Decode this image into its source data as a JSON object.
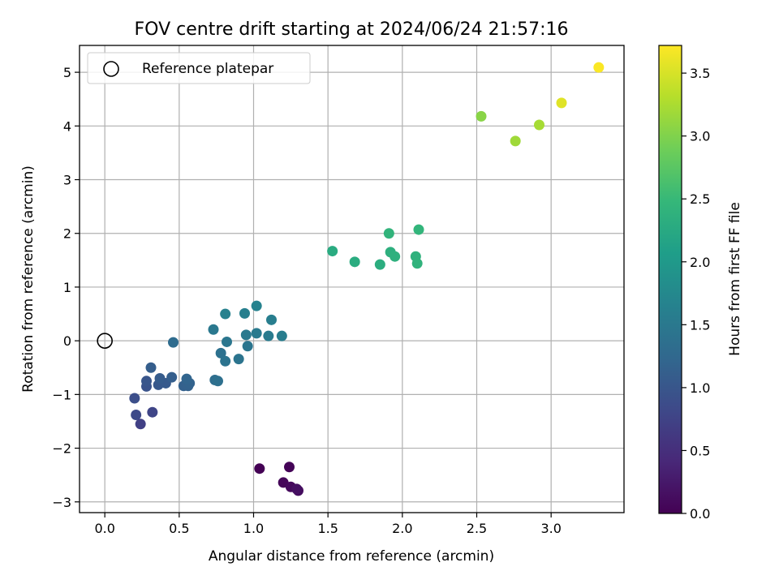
{
  "chart_data": {
    "type": "scatter",
    "title": "FOV centre drift starting at 2024/06/24 21:57:16",
    "xlabel": "Angular distance from reference (arcmin)",
    "ylabel": "Rotation from reference (arcmin)",
    "xlim": [
      -0.17,
      3.49
    ],
    "ylim": [
      -3.2,
      5.5
    ],
    "xticks": [
      0.0,
      0.5,
      1.0,
      1.5,
      2.0,
      2.5,
      3.0
    ],
    "xtick_labels": [
      "0.0",
      "0.5",
      "1.0",
      "1.5",
      "2.0",
      "2.5",
      "3.0"
    ],
    "yticks": [
      -3,
      -2,
      -1,
      0,
      1,
      2,
      3,
      4,
      5
    ],
    "ytick_labels": [
      "−3",
      "−2",
      "−1",
      "0",
      "1",
      "2",
      "3",
      "4",
      "5"
    ],
    "grid": true,
    "legend": {
      "placement": "top-left",
      "entries": [
        "Reference platepar"
      ]
    },
    "reference_point": {
      "x": 0.0,
      "y": 0.0,
      "label": "Reference platepar"
    },
    "colormap": "viridis",
    "colorbar": {
      "label": "Hours from first FF file",
      "range": [
        0.0,
        3.72
      ],
      "ticks": [
        0.0,
        0.5,
        1.0,
        1.5,
        2.0,
        2.5,
        3.0,
        3.5
      ],
      "tick_labels": [
        "0.0",
        "0.5",
        "1.0",
        "1.5",
        "2.0",
        "2.5",
        "3.0",
        "3.5"
      ]
    },
    "points": [
      {
        "x": 1.04,
        "y": -2.38,
        "c": 0.0
      },
      {
        "x": 1.24,
        "y": -2.35,
        "c": 0.03
      },
      {
        "x": 1.2,
        "y": -2.64,
        "c": 0.06
      },
      {
        "x": 1.25,
        "y": -2.72,
        "c": 0.09
      },
      {
        "x": 1.3,
        "y": -2.79,
        "c": 0.12
      },
      {
        "x": 1.29,
        "y": -2.76,
        "c": 0.15
      },
      {
        "x": 0.24,
        "y": -1.55,
        "c": 0.72
      },
      {
        "x": 0.32,
        "y": -1.33,
        "c": 0.78
      },
      {
        "x": 0.21,
        "y": -1.38,
        "c": 0.84
      },
      {
        "x": 0.2,
        "y": -1.07,
        "c": 0.9
      },
      {
        "x": 0.28,
        "y": -0.85,
        "c": 0.96
      },
      {
        "x": 0.28,
        "y": -0.75,
        "c": 1.0
      },
      {
        "x": 0.36,
        "y": -0.82,
        "c": 1.02
      },
      {
        "x": 0.41,
        "y": -0.79,
        "c": 1.05
      },
      {
        "x": 0.37,
        "y": -0.7,
        "c": 1.08
      },
      {
        "x": 0.31,
        "y": -0.5,
        "c": 1.1
      },
      {
        "x": 0.45,
        "y": -0.68,
        "c": 1.12
      },
      {
        "x": 0.53,
        "y": -0.84,
        "c": 1.14
      },
      {
        "x": 0.56,
        "y": -0.84,
        "c": 1.16
      },
      {
        "x": 0.57,
        "y": -0.79,
        "c": 1.18
      },
      {
        "x": 0.55,
        "y": -0.71,
        "c": 1.2
      },
      {
        "x": 0.46,
        "y": -0.03,
        "c": 1.3
      },
      {
        "x": 0.74,
        "y": -0.73,
        "c": 1.33
      },
      {
        "x": 0.76,
        "y": -0.75,
        "c": 1.36
      },
      {
        "x": 0.78,
        "y": -0.23,
        "c": 1.39
      },
      {
        "x": 0.81,
        "y": -0.38,
        "c": 1.41
      },
      {
        "x": 0.9,
        "y": -0.34,
        "c": 1.43
      },
      {
        "x": 0.96,
        "y": -0.1,
        "c": 1.45
      },
      {
        "x": 0.82,
        "y": -0.02,
        "c": 1.47
      },
      {
        "x": 0.73,
        "y": 0.21,
        "c": 1.49
      },
      {
        "x": 0.95,
        "y": 0.11,
        "c": 1.51
      },
      {
        "x": 1.02,
        "y": 0.14,
        "c": 1.53
      },
      {
        "x": 1.1,
        "y": 0.09,
        "c": 1.55
      },
      {
        "x": 1.19,
        "y": 0.09,
        "c": 1.57
      },
      {
        "x": 1.12,
        "y": 0.39,
        "c": 1.59
      },
      {
        "x": 0.94,
        "y": 0.51,
        "c": 1.61
      },
      {
        "x": 0.81,
        "y": 0.5,
        "c": 1.63
      },
      {
        "x": 1.02,
        "y": 0.65,
        "c": 1.65
      },
      {
        "x": 1.53,
        "y": 1.67,
        "c": 2.28
      },
      {
        "x": 1.68,
        "y": 1.47,
        "c": 2.3
      },
      {
        "x": 1.85,
        "y": 1.42,
        "c": 2.32
      },
      {
        "x": 1.92,
        "y": 1.65,
        "c": 2.34
      },
      {
        "x": 1.95,
        "y": 1.57,
        "c": 2.36
      },
      {
        "x": 2.09,
        "y": 1.57,
        "c": 2.38
      },
      {
        "x": 2.1,
        "y": 1.44,
        "c": 2.4
      },
      {
        "x": 1.91,
        "y": 2.0,
        "c": 2.42
      },
      {
        "x": 2.11,
        "y": 2.07,
        "c": 2.44
      },
      {
        "x": 2.53,
        "y": 4.18,
        "c": 3.05
      },
      {
        "x": 2.76,
        "y": 3.72,
        "c": 3.18
      },
      {
        "x": 2.92,
        "y": 4.02,
        "c": 3.22
      },
      {
        "x": 3.07,
        "y": 4.43,
        "c": 3.55
      },
      {
        "x": 3.32,
        "y": 5.09,
        "c": 3.7
      }
    ]
  }
}
